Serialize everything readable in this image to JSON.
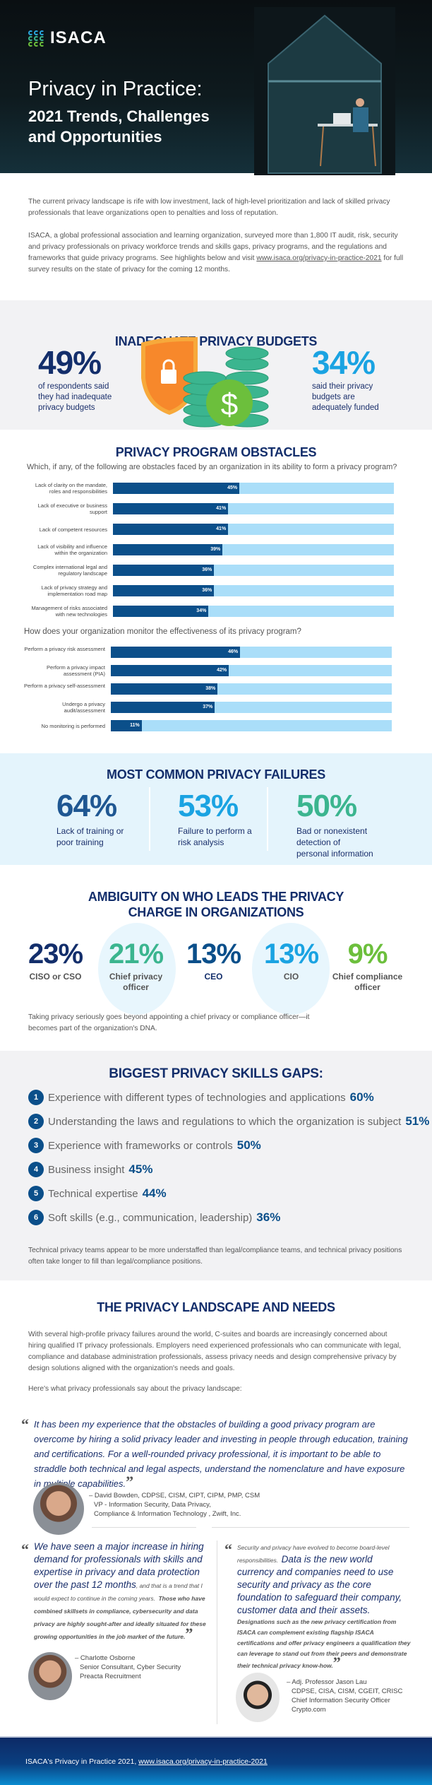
{
  "hero": {
    "logo": "ISACA",
    "title": "Privacy in Practice:",
    "subtitle": "2021 Trends, Challenges and Opportunities"
  },
  "intro": {
    "p1": "The current privacy landscape is rife with low investment, lack of high-level prioritization and lack of skilled privacy professionals that leave organizations open to penalties and loss of reputation.",
    "p2": "ISACA, a global professional association and learning organization, surveyed more than 1,800 IT audit, risk, security and privacy professionals on privacy workforce trends and skills gaps, privacy programs, and the regulations and frameworks that guide privacy programs. See highlights below and visit",
    "link": "www.isaca.org/privacy-in-practice-2021",
    "p2_end": " for full survey results on the state of privacy for the coming 12 months."
  },
  "budgets": {
    "title": "INADEQUATE PRIVACY BUDGETS",
    "left_value": "49%",
    "left_text": "of respondents said they had inadequate privacy budgets",
    "right_value": "34%",
    "right_text": "said their privacy budgets are adequately funded",
    "colors": {
      "left": "#132e6b",
      "right": "#1aa3e2",
      "shield": "#f7931e",
      "coins": "#3bb58f"
    }
  },
  "obstacles": {
    "title": "PRIVACY PROGRAM OBSTACLES"
  },
  "chart_data": [
    {
      "type": "bar",
      "orientation": "horizontal",
      "title": "Which, if any, of the following are obstacles faced by an organization in its ability to form a privacy program?",
      "categories": [
        "Lack of clarity on the mandate, roles and responsibilities",
        "Lack of executive or business support",
        "Lack of competent resources",
        "Lack of visibility and influence within the organization",
        "Complex international legal and regulatory landscape",
        "Lack of privacy strategy and implementation road map",
        "Management of risks associated with new technologies"
      ],
      "values": [
        45,
        41,
        41,
        39,
        36,
        36,
        34
      ],
      "labels": [
        "45%",
        "41%",
        "41%",
        "39%",
        "36%",
        "36%",
        "34%"
      ],
      "xlim": [
        0,
        100
      ],
      "colors": {
        "fill": "#0b4f8a",
        "track": "#aadef9"
      }
    },
    {
      "type": "bar",
      "orientation": "horizontal",
      "title": "How does your organization monitor the effectiveness of its privacy program?",
      "categories": [
        "Perform a privacy risk assessment",
        "Perform a privacy impact assessment (PIA)",
        "Perform a privacy self-assessment",
        "Undergo a privacy audit/assessment",
        "No monitoring is performed"
      ],
      "values": [
        46,
        42,
        38,
        37,
        11
      ],
      "labels": [
        "46%",
        "42%",
        "38%",
        "37%",
        "11%"
      ],
      "xlim": [
        0,
        100
      ],
      "colors": {
        "fill": "#0b4f8a",
        "track": "#aadef9"
      }
    }
  ],
  "failures": {
    "title": "MOST COMMON PRIVACY FAILURES",
    "items": [
      {
        "value": "64%",
        "text": "Lack of training or poor training",
        "color": "#1f5792"
      },
      {
        "value": "53%",
        "text": "Failure to perform a risk analysis",
        "color": "#1aa3e2"
      },
      {
        "value": "50%",
        "text": "Bad or nonexistent detection of personal information",
        "color": "#3bb58f"
      }
    ]
  },
  "leaders": {
    "title": "AMBIGUITY ON WHO LEADS THE PRIVACY CHARGE IN ORGANIZATIONS",
    "items": [
      {
        "value": "23%",
        "label": "CISO or CSO",
        "color": "#132e6b"
      },
      {
        "value": "21%",
        "label": "Chief privacy officer",
        "color": "#3bb58f"
      },
      {
        "value": "13%",
        "label": "CEO",
        "color": "#0b4f8a"
      },
      {
        "value": "13%",
        "label": "CIO",
        "color": "#1aa3e2"
      },
      {
        "value": "9%",
        "label": "Chief compliance officer",
        "color": "#6cbf3c"
      }
    ],
    "note": "Taking privacy seriously goes beyond appointing a chief privacy or compliance officer—it becomes part of the organization's DNA."
  },
  "skills": {
    "title": "BIGGEST PRIVACY SKILLS GAPS:",
    "items": [
      {
        "n": "1",
        "text": "Experience with different types of technologies and applications",
        "value": "60%"
      },
      {
        "n": "2",
        "text": "Understanding the laws and regulations to which the organization is subject",
        "value": "51%"
      },
      {
        "n": "3",
        "text": "Experience with frameworks or controls",
        "value": "50%"
      },
      {
        "n": "4",
        "text": "Business insight",
        "value": "45%"
      },
      {
        "n": "5",
        "text": "Technical expertise",
        "value": "44%"
      },
      {
        "n": "6",
        "text": "Soft skills (e.g., communication, leadership)",
        "value": "36%"
      }
    ],
    "note": "Technical privacy teams appear to be more understaffed than legal/compliance teams, and technical privacy positions often take longer to fill than legal/compliance positions."
  },
  "landscape": {
    "title": "THE PRIVACY LANDSCAPE AND NEEDS",
    "para": "With several high-profile privacy failures around the world, C-suites and boards are increasingly concerned about hiring qualified IT privacy professionals. Employers need experienced professionals who can communicate with legal, compliance and database administration professionals, assess privacy needs and design comprehensive privacy by design solutions aligned with the organization's needs and goals.",
    "lead_in": "Here's what privacy professionals say about the privacy landscape:",
    "quotes": [
      {
        "text": "It has been my experience that the obstacles of building a good privacy program are overcome by hiring a solid privacy leader and investing in people through education, training and certifications. For a well-rounded privacy professional, it is important to be able to straddle both technical and legal aspects, understand the nomenclature and have exposure in multiple capabilities.",
        "author": "– David Bowden, CDPSE, CISM, CIPT, CIPM, PMP, CSM",
        "role": "VP - Information Security, Data Privacy,",
        "org": "Compliance & Information Technology , Zwift, Inc."
      },
      {
        "text_main": "We have seen a major increase in hiring demand for professionals with skills and expertise in privacy and data protection over the past 12 months",
        "text_rest": ", and that is a trend that I would expect to continue in the coming years.",
        "text_bold": "Those who have combined skillsets in compliance, cybersecurity and data privacy are highly sought-after and ideally situated for these growing opportunities in the job market of the future.",
        "author": "– Charlotte Osborne",
        "role": "Senior Consultant, Cyber Security",
        "org": "Preacta Recruitment"
      },
      {
        "text_pre": "Security and privacy have evolved to become board-level responsibilities.",
        "text_main": "Data is the new world currency and companies need to use security and privacy as the core foundation to safeguard their company, customer data and their assets.",
        "text_bold": "Designations such as the new privacy certification from ISACA can complement existing flagship ISACA certifications and offer privacy engineers a qualification they can leverage to stand out from their peers and demonstrate their technical privacy know-how.",
        "author": "– Adj. Professor Jason Lau",
        "creds": "CDPSE, CISA, CISM, CGEIT, CRISC",
        "role": "Chief Information Security Officer",
        "org": "Crypto.com"
      }
    ]
  },
  "footer": {
    "text": "ISACA's Privacy in Practice 2021, ",
    "link": "www.isaca.org/privacy-in-practice-2021"
  }
}
